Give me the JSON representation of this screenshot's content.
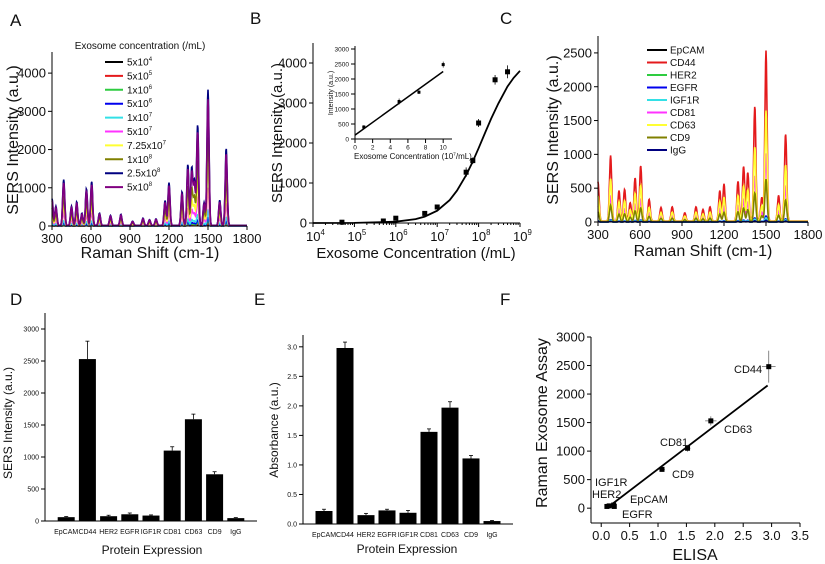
{
  "chart_data": [
    {
      "panel_label": "A",
      "type": "line",
      "legend_title": "Exosome concentration (/mL)",
      "xlabel": "Raman Shift (cm-1)",
      "ylabel": "SERS Intensity (a.u.)",
      "xlim": [
        300,
        1800
      ],
      "ylim": [
        0,
        4500
      ],
      "xticks": [
        300,
        600,
        900,
        1200,
        1500,
        1800
      ],
      "yticks": [
        0,
        1000,
        2000,
        3000,
        4000
      ],
      "legend_position": "top-center",
      "reference_peaks": [
        [
          300,
          700
        ],
        [
          330,
          500
        ],
        [
          390,
          1200
        ],
        [
          450,
          500
        ],
        [
          490,
          620
        ],
        [
          530,
          320
        ],
        [
          565,
          960
        ],
        [
          605,
          1150
        ],
        [
          665,
          320
        ],
        [
          750,
          260
        ],
        [
          830,
          290
        ],
        [
          920,
          110
        ],
        [
          1000,
          190
        ],
        [
          1050,
          150
        ],
        [
          1100,
          170
        ],
        [
          1170,
          650
        ],
        [
          1200,
          1120
        ],
        [
          1300,
          880
        ],
        [
          1345,
          1600
        ],
        [
          1375,
          1500
        ],
        [
          1395,
          1150
        ],
        [
          1420,
          2630
        ],
        [
          1470,
          600
        ],
        [
          1500,
          3550
        ],
        [
          1590,
          660
        ],
        [
          1640,
          2020
        ]
      ],
      "series": [
        {
          "label": "5x10",
          "exp": "4",
          "color": "#000000",
          "scale": 0.01
        },
        {
          "label": "5x10",
          "exp": "5",
          "color": "#e41a1c",
          "scale": 0.02
        },
        {
          "label": "1x10",
          "exp": "6",
          "color": "#2ecc40",
          "scale": 0.035
        },
        {
          "label": "5x10",
          "exp": "6",
          "color": "#0000ee",
          "scale": 0.06
        },
        {
          "label": "1x10",
          "exp": "7",
          "color": "#33e0e6",
          "scale": 0.11
        },
        {
          "label": "5x10",
          "exp": "7",
          "color": "#ff33ff",
          "scale": 0.28
        },
        {
          "label": "7.25x10",
          "exp": "7",
          "color": "#ffff33",
          "scale": 0.45
        },
        {
          "label": "1x10",
          "exp": "8",
          "color": "#808000",
          "scale": 0.65
        },
        {
          "label": "2.5x10",
          "exp": "8",
          "color": "#000080",
          "scale": 1.0
        },
        {
          "label": "5x10",
          "exp": "8",
          "color": "#800080",
          "scale": 0.93
        }
      ]
    },
    {
      "panel_label": "B",
      "type": "scatter",
      "xlabel": "Exosome Concentration (/mL)",
      "ylabel": "SERS Intensity (a.u.)",
      "xscale": "log",
      "xlim": [
        10000,
        1000000000
      ],
      "ylim": [
        0,
        4500
      ],
      "xticks": [
        {
          "base": "10",
          "exp": "4"
        },
        {
          "base": "10",
          "exp": "5"
        },
        {
          "base": "10",
          "exp": "6"
        },
        {
          "base": "10",
          "exp": "7"
        },
        {
          "base": "10",
          "exp": "8"
        },
        {
          "base": "10",
          "exp": "9"
        }
      ],
      "yticks": [
        0,
        1000,
        2000,
        3000,
        4000
      ],
      "points": {
        "x": [
          50000,
          500000,
          1000000,
          5000000,
          10000000,
          50000000,
          72500000,
          100000000,
          250000000,
          500000000
        ],
        "y": [
          20,
          50,
          120,
          240,
          400,
          1270,
          1560,
          2500,
          3580,
          3780
        ],
        "err": [
          20,
          20,
          30,
          40,
          50,
          120,
          80,
          100,
          120,
          160
        ]
      },
      "fit_curve": {
        "x": [
          10000,
          100000,
          1000000,
          3000000,
          5000000,
          10000000,
          20000000,
          30000000,
          50000000,
          70000000,
          100000000,
          150000000,
          200000000,
          300000000,
          500000000,
          700000000,
          1000000000
        ],
        "y": [
          0,
          3,
          33,
          97,
          159,
          307,
          573,
          809,
          1194,
          1505,
          1870,
          2303,
          2606,
          2991,
          3413,
          3627,
          3805
        ]
      },
      "inset": {
        "type": "scatter",
        "xlabel": "Exosome Concentration (10",
        "xlabel_exp": "7",
        "xlabel_tail": "/mL)",
        "ylabel": "Intensity (a.u.)",
        "xlim": [
          0,
          11
        ],
        "ylim": [
          0,
          3100
        ],
        "xticks": [
          0,
          2,
          4,
          6,
          8,
          10
        ],
        "yticks": [
          0,
          500,
          1000,
          1500,
          2000,
          2500,
          3000
        ],
        "points": {
          "x": [
            1,
            5,
            7.25,
            10
          ],
          "y": [
            400,
            1250,
            1560,
            2480
          ],
          "err": [
            60,
            100,
            60,
            100
          ]
        },
        "fit_line": {
          "x": [
            0,
            10
          ],
          "y": [
            130,
            2250
          ]
        }
      }
    },
    {
      "panel_label": "C",
      "type": "line",
      "xlabel": "Raman Shift (cm-1)",
      "ylabel": "SERS Intensity (a.u.)",
      "xlim": [
        300,
        1800
      ],
      "ylim": [
        0,
        2750
      ],
      "xticks": [
        300,
        600,
        900,
        1200,
        1500,
        1800
      ],
      "yticks": [
        0,
        500,
        1000,
        1500,
        2000,
        2500
      ],
      "legend_position": "top-left",
      "reference_peaks": [
        [
          300,
          580
        ],
        [
          390,
          970
        ],
        [
          450,
          450
        ],
        [
          490,
          470
        ],
        [
          530,
          270
        ],
        [
          565,
          640
        ],
        [
          605,
          820
        ],
        [
          665,
          320
        ],
        [
          750,
          200
        ],
        [
          830,
          210
        ],
        [
          920,
          120
        ],
        [
          1000,
          210
        ],
        [
          1050,
          170
        ],
        [
          1100,
          210
        ],
        [
          1170,
          450
        ],
        [
          1200,
          550
        ],
        [
          1300,
          590
        ],
        [
          1340,
          810
        ],
        [
          1370,
          720
        ],
        [
          1420,
          1700
        ],
        [
          1470,
          350
        ],
        [
          1500,
          2520
        ],
        [
          1590,
          380
        ],
        [
          1640,
          1290
        ]
      ],
      "series": [
        {
          "name": "EpCAM",
          "color": "#000000",
          "scale": 0.015
        },
        {
          "name": "CD44",
          "color": "#e41a1c",
          "scale": 1.0
        },
        {
          "name": "HER2",
          "color": "#2ecc40",
          "scale": 0.02
        },
        {
          "name": "EGFR",
          "color": "#0000ee",
          "scale": 0.035
        },
        {
          "name": "IGF1R",
          "color": "#33e0e6",
          "scale": 0.025
        },
        {
          "name": "CD81",
          "color": "#ff33ff",
          "scale": 0.4
        },
        {
          "name": "CD63",
          "color": "#ffff33",
          "scale": 0.65
        },
        {
          "name": "CD9",
          "color": "#808000",
          "scale": 0.25
        },
        {
          "name": "IgG",
          "color": "#000080",
          "scale": 0.01
        }
      ]
    },
    {
      "panel_label": "D",
      "type": "bar",
      "xlabel": "Protein Expression",
      "ylabel": "SERS Intensity (a.u.)",
      "ylim": [
        0,
        3250
      ],
      "yticks": [
        0,
        500,
        1000,
        1500,
        2000,
        2500,
        3000
      ],
      "categories": [
        "EpCAM",
        "CD44",
        "HER2",
        "EGFR",
        "IGF1R",
        "CD81",
        "CD63",
        "CD9",
        "IgG"
      ],
      "values": [
        60,
        2530,
        75,
        105,
        85,
        1100,
        1590,
        730,
        45
      ],
      "errors": [
        10,
        280,
        15,
        20,
        10,
        60,
        80,
        40,
        8
      ],
      "color": "#000000"
    },
    {
      "panel_label": "E",
      "type": "bar",
      "xlabel": "Protein Expression",
      "ylabel": "Absorbance (a.u.)",
      "ylim": [
        0,
        3.2
      ],
      "yticks": [
        "0.0",
        "0.5",
        "1.0",
        "1.5",
        "2.0",
        "2.5",
        "3.0"
      ],
      "categories": [
        "EpCAM",
        "CD44",
        "HER2",
        "EGFR",
        "IGF1R",
        "CD81",
        "CD63",
        "CD9",
        "IgG"
      ],
      "values": [
        0.22,
        2.98,
        0.15,
        0.23,
        0.19,
        1.56,
        1.97,
        1.11,
        0.05
      ],
      "errors": [
        0.03,
        0.1,
        0.03,
        0.02,
        0.04,
        0.05,
        0.1,
        0.05,
        0.01
      ],
      "color": "#000000"
    },
    {
      "panel_label": "F",
      "type": "scatter",
      "xlabel": "ELISA",
      "ylabel": "Raman Exosome Assay",
      "xlim": [
        -0.18,
        3.5
      ],
      "ylim": [
        -260,
        3000
      ],
      "xticks": [
        "0.0",
        "0.5",
        "1.0",
        "1.5",
        "2.0",
        "2.5",
        "3.0",
        "3.5"
      ],
      "yticks": [
        0,
        500,
        1000,
        1500,
        2000,
        2500,
        3000
      ],
      "points": [
        {
          "name": "EpCAM",
          "x": 0.22,
          "y": 55,
          "xerr": 0.03,
          "yerr": 10
        },
        {
          "name": "CD44",
          "x": 2.95,
          "y": 2480,
          "xerr": 0.12,
          "yerr": 280
        },
        {
          "name": "HER2",
          "x": 0.14,
          "y": 40,
          "xerr": 0.03,
          "yerr": 15
        },
        {
          "name": "EGFR",
          "x": 0.23,
          "y": 30,
          "xerr": 0.02,
          "yerr": 20
        },
        {
          "name": "IGF1R",
          "x": 0.1,
          "y": 30,
          "xerr": 0.04,
          "yerr": 10
        },
        {
          "name": "CD81",
          "x": 1.52,
          "y": 1050,
          "xerr": 0.05,
          "yerr": 60
        },
        {
          "name": "CD63",
          "x": 1.93,
          "y": 1530,
          "xerr": 0.1,
          "yerr": 80
        },
        {
          "name": "CD9",
          "x": 1.07,
          "y": 680,
          "xerr": 0.05,
          "yerr": 40
        }
      ],
      "fit_line": {
        "x": [
          0.15,
          2.93
        ],
        "y": [
          40,
          2150
        ]
      }
    }
  ]
}
